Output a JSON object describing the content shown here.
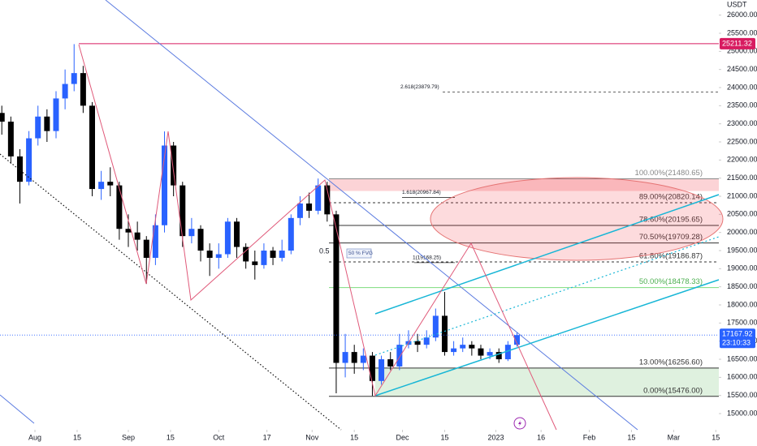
{
  "chart_data": {
    "type": "candlestick",
    "currency": "USDT",
    "x": [
      -11,
      -8,
      -5,
      -2,
      1,
      4,
      7,
      10,
      13,
      16,
      19,
      22,
      25,
      28,
      31,
      34,
      37,
      40,
      43,
      46,
      49,
      52,
      55,
      58,
      61,
      64,
      67,
      70,
      73,
      76,
      79,
      82,
      85,
      88,
      91,
      94,
      97,
      100,
      103,
      106,
      109,
      112,
      115,
      118,
      121,
      124,
      127,
      130,
      133,
      136,
      139,
      142,
      145,
      148,
      151,
      154,
      157,
      160
    ],
    "open": [
      23300,
      23060,
      22100,
      21400,
      22600,
      23200,
      22800,
      23700,
      24100,
      24400,
      23500,
      21200,
      21400,
      21300,
      20100,
      20000,
      19800,
      19300,
      20200,
      22400,
      21300,
      19900,
      20100,
      19500,
      19300,
      19400,
      20300,
      19600,
      19200,
      19100,
      19500,
      19300,
      19500,
      20400,
      20800,
      20600,
      21300,
      20500,
      16400,
      16700,
      16400,
      16600,
      15900,
      16500,
      16300,
      16900,
      17000,
      16900,
      17100,
      17700,
      16700,
      16800,
      16900,
      16800,
      16600,
      16700,
      16500,
      16900
    ],
    "high": [
      23500,
      23200,
      22300,
      22800,
      23500,
      23400,
      23900,
      24500,
      25200,
      24600,
      23600,
      21700,
      21800,
      21400,
      20500,
      20300,
      19900,
      20500,
      22790,
      22500,
      21400,
      20400,
      20200,
      19700,
      19700,
      20400,
      20400,
      19700,
      19500,
      19700,
      19600,
      19800,
      20500,
      21000,
      21100,
      21490,
      21400,
      20600,
      17200,
      16900,
      16800,
      16700,
      16600,
      16700,
      17200,
      17300,
      17200,
      17300,
      17900,
      18360,
      17000,
      17100,
      17000,
      16900,
      16800,
      16800,
      17000,
      17250
    ],
    "low": [
      22700,
      21900,
      20800,
      21300,
      22400,
      22500,
      22600,
      23400,
      23900,
      23300,
      21000,
      20900,
      21000,
      19800,
      19600,
      19500,
      18580,
      19100,
      20000,
      21000,
      19600,
      19700,
      19200,
      18800,
      19000,
      19300,
      19300,
      19000,
      18700,
      19000,
      19100,
      19200,
      19400,
      20200,
      20400,
      20500,
      20300,
      15560,
      16000,
      16100,
      16200,
      15490,
      15800,
      16200,
      16200,
      16800,
      16700,
      16800,
      17000,
      16600,
      16600,
      16700,
      16600,
      16500,
      16500,
      16400,
      16450,
      16850
    ],
    "close": [
      23060,
      22100,
      21400,
      22600,
      23200,
      22800,
      23700,
      24100,
      24400,
      23500,
      21200,
      21400,
      21300,
      20100,
      20000,
      19800,
      19300,
      20200,
      22400,
      21300,
      19900,
      20100,
      19500,
      19300,
      19400,
      20300,
      19600,
      19200,
      19100,
      19500,
      19300,
      19500,
      20400,
      20800,
      20600,
      21300,
      20500,
      16400,
      16700,
      16400,
      16600,
      15900,
      16500,
      16300,
      16900,
      17000,
      16900,
      17100,
      17700,
      16700,
      16800,
      16900,
      16800,
      16600,
      16700,
      16500,
      16900,
      17167.92
    ],
    "up_color": "#2962ff",
    "down_color": "#000000",
    "countdown": "23:10:33",
    "xlim": [
      -11.6,
      227
    ],
    "xticks": [
      {
        "value": 0,
        "label": "Aug"
      },
      {
        "value": 14,
        "label": "15"
      },
      {
        "value": 31,
        "label": "Sep"
      },
      {
        "value": 45,
        "label": "15"
      },
      {
        "value": 61,
        "label": "Oct"
      },
      {
        "value": 77,
        "label": "17"
      },
      {
        "value": 92,
        "label": "Nov"
      },
      {
        "value": 106,
        "label": "15"
      },
      {
        "value": 122,
        "label": "Dec"
      },
      {
        "value": 136,
        "label": "15"
      },
      {
        "value": 153,
        "label": "2023"
      },
      {
        "value": 168,
        "label": "16"
      },
      {
        "value": 184,
        "label": "Feb"
      },
      {
        "value": 198,
        "label": "15"
      },
      {
        "value": 212,
        "label": "Mar"
      },
      {
        "value": 226,
        "label": "15"
      }
    ],
    "ylim": [
      14553,
      26418
    ],
    "yticks": [
      {
        "value": 15000,
        "label": "15000.00"
      },
      {
        "value": 15500,
        "label": "15500.00"
      },
      {
        "value": 16000,
        "label": "16000.00"
      },
      {
        "value": 16500,
        "label": "16500.00"
      },
      {
        "value": 17000,
        "label": "17000.00"
      },
      {
        "value": 17500,
        "label": "17500.00"
      },
      {
        "value": 18000,
        "label": "18000.00"
      },
      {
        "value": 18500,
        "label": "18500.00"
      },
      {
        "value": 19000,
        "label": "19000.00"
      },
      {
        "value": 19500,
        "label": "19500.00"
      },
      {
        "value": 20000,
        "label": "20000.00"
      },
      {
        "value": 20500,
        "label": "20500.00"
      },
      {
        "value": 21000,
        "label": "21000.00"
      },
      {
        "value": 21500,
        "label": "21500.00"
      },
      {
        "value": 22000,
        "label": "22000.00"
      },
      {
        "value": 22500,
        "label": "22500.00"
      },
      {
        "value": 23000,
        "label": "23000.00"
      },
      {
        "value": 23500,
        "label": "23500.00"
      },
      {
        "value": 24000,
        "label": "24000.00"
      },
      {
        "value": 24500,
        "label": "24500.00"
      },
      {
        "value": 25000,
        "label": "25000.00"
      },
      {
        "value": 25500,
        "label": "25500.00"
      },
      {
        "value": 26000,
        "label": "26000.00"
      }
    ],
    "resistance": 25211.32,
    "fib_levels": [
      {
        "label": "100.00%(21480.65)",
        "price": 21480.65,
        "color": "#888888",
        "dashed": false
      },
      {
        "label": "89.00%(20820.14)",
        "price": 20820.14,
        "color": "#333333",
        "dashed": true
      },
      {
        "label": "78.60%(20195.65)",
        "price": 20195.65,
        "color": "#333333",
        "dashed": false
      },
      {
        "label": "70.50%(19709.28)",
        "price": 19709.28,
        "color": "#333333",
        "dashed": false
      },
      {
        "label": "61.80%(19186.87)",
        "price": 19186.87,
        "color": "#333333",
        "dashed": true
      },
      {
        "label": "50.00%(18478.33)",
        "price": 18478.33,
        "color": "#4caf50",
        "dashed": false
      },
      {
        "label": "13.00%(16256.60)",
        "price": 16256.6,
        "color": "#333333",
        "dashed": false
      },
      {
        "label": "0.00%(15476.00)",
        "price": 15476,
        "color": "#333333",
        "dashed": false
      }
    ],
    "extensions": [
      {
        "label": "2.618(23879.79)",
        "price": 23879.79
      },
      {
        "label": "1.618(20967.84)",
        "price": 20967.84
      },
      {
        "label": "1(19168.25)",
        "price": 19168.25
      }
    ],
    "annotations": [
      "0.5",
      "50 % FVG"
    ]
  }
}
